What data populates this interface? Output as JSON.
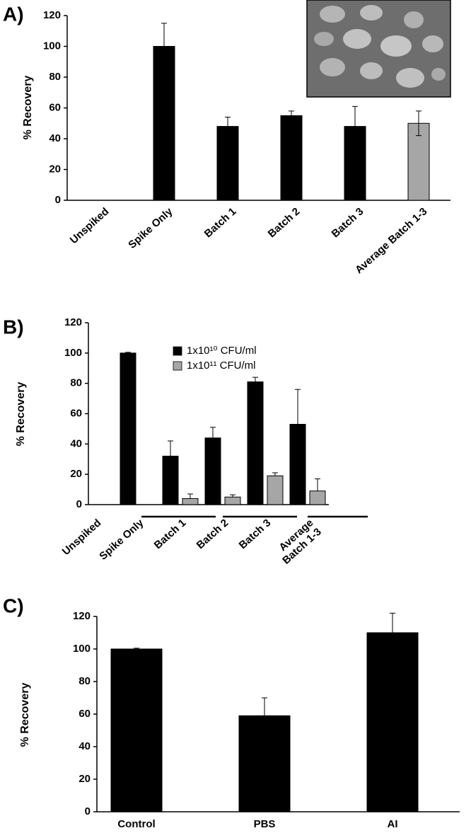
{
  "chart_data": [
    {
      "type": "bar",
      "panel_label": "A)",
      "ylabel": "% Recovery",
      "categories": [
        "Unspiked",
        "Spike Only",
        "Batch 1",
        "Batch 2",
        "Batch 3",
        "Average Batch 1-3"
      ],
      "values": [
        0,
        100,
        48,
        55,
        48,
        50
      ],
      "errors": [
        null,
        15,
        6,
        3,
        13,
        8
      ],
      "colors": [
        "#000000",
        "#000000",
        "#000000",
        "#000000",
        "#000000",
        "#a6a6a6"
      ],
      "ylim": [
        0,
        120
      ],
      "yticks": [
        0,
        20,
        40,
        60,
        80,
        100,
        120
      ]
    },
    {
      "type": "bar",
      "panel_label": "B)",
      "ylabel": "% Recovery",
      "categories": [
        "Unspiked",
        "Spike Only",
        "Batch 1",
        "Batch 2",
        "Batch 3",
        [
          "Average",
          "Batch 1-3"
        ]
      ],
      "series": [
        {
          "name": "1x10¹⁰ CFU/ml",
          "color": "#000000",
          "values": [
            0,
            100,
            32,
            44,
            81,
            53
          ],
          "errors": [
            null,
            0.5,
            10,
            7,
            3,
            23
          ]
        },
        {
          "name": "1x10¹¹ CFU/ml",
          "color": "#a6a6a6",
          "values": [
            null,
            null,
            4,
            5,
            19,
            9
          ],
          "errors": [
            null,
            null,
            3,
            1.5,
            2,
            8
          ]
        }
      ],
      "ylim": [
        0,
        120
      ],
      "yticks": [
        0,
        20,
        40,
        60,
        80,
        100,
        120
      ]
    },
    {
      "type": "bar",
      "panel_label": "C)",
      "ylabel": "% Recovery",
      "categories": [
        "Control",
        "PBS",
        "AI"
      ],
      "values": [
        100,
        59,
        110
      ],
      "errors": [
        0.5,
        11,
        12
      ],
      "color": "#000000",
      "ylim": [
        0,
        120
      ],
      "yticks": [
        0,
        20,
        40,
        60,
        80,
        100,
        120
      ]
    }
  ]
}
